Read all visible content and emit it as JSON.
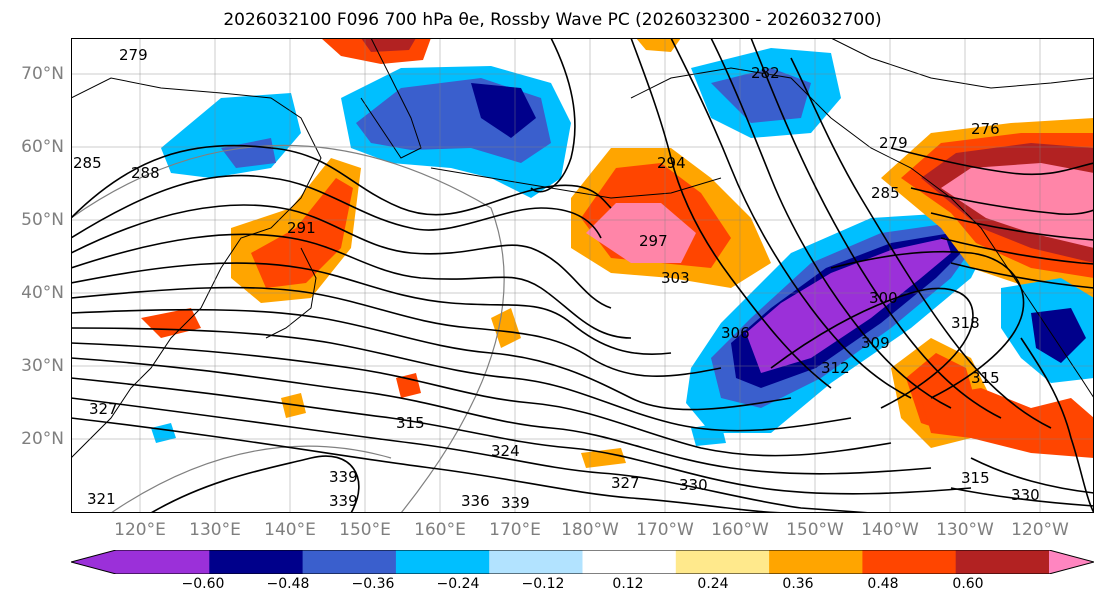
{
  "title": "2026032100 F096 700 hPa θe, Rossby Wave PC (2026032300 - 2026032700)",
  "lat_labels": [
    "70°N",
    "60°N",
    "50°N",
    "40°N",
    "30°N",
    "20°N"
  ],
  "lon_labels": [
    "120°E",
    "130°E",
    "140°E",
    "150°E",
    "160°E",
    "170°E",
    "180°W",
    "170°W",
    "160°W",
    "150°W",
    "140°W",
    "130°W",
    "120°W"
  ],
  "contour_labels": [
    "279",
    "276",
    "282",
    "285",
    "288",
    "291",
    "294",
    "297",
    "300",
    "303",
    "306",
    "309",
    "312",
    "315",
    "318",
    "321",
    "324",
    "327",
    "330",
    "336",
    "339"
  ],
  "colorbar": {
    "ticks": [
      "−0.60",
      "−0.48",
      "−0.36",
      "−0.24",
      "−0.12",
      "0.12",
      "0.24",
      "0.36",
      "0.48",
      "0.60"
    ],
    "colors": [
      "#9b30d9",
      "#00008b",
      "#3a5fcd",
      "#00bfff",
      "#b2e3ff",
      "#ffffff",
      "#ffe98c",
      "#ffa500",
      "#ff4500",
      "#b22222",
      "#ff85a8",
      "#ff85c0"
    ]
  }
}
